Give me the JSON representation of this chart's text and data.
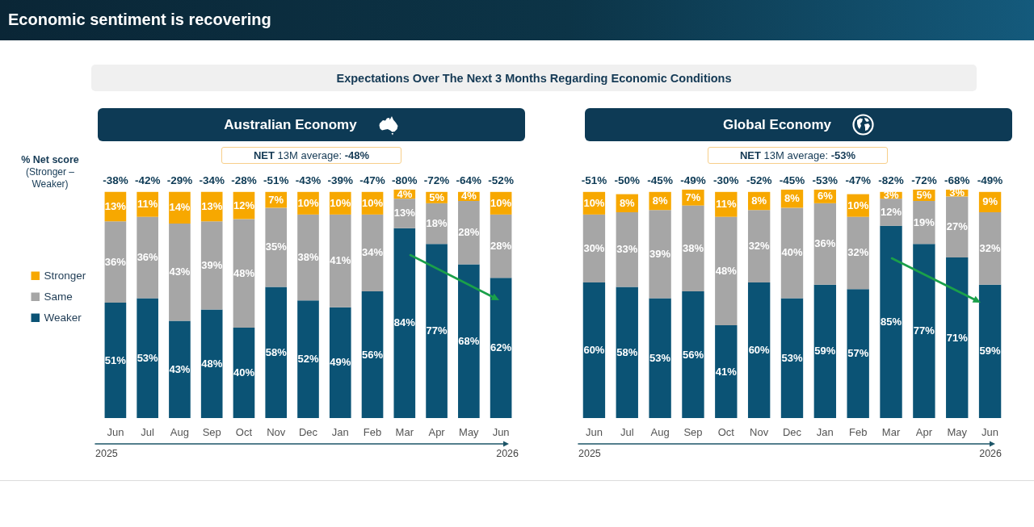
{
  "chart_data": [
    {
      "type": "other",
      "title": "Economic sentiment is recovering",
      "subtitle": "Expectations Over The Next 3 Months Regarding Economic Conditions"
    },
    {
      "type": "bar",
      "title": "Australian Economy",
      "subtitle": "NET 13M average: -48%",
      "ylabel": "% Net score (Stronger – Weaker)",
      "stacked": true,
      "legend": "left",
      "categories": [
        "Jun",
        "Jul",
        "Aug",
        "Sep",
        "Oct",
        "Nov",
        "Dec",
        "Jan",
        "Feb",
        "Mar",
        "Apr",
        "May",
        "Jun"
      ],
      "series": [
        {
          "name": "Weaker",
          "color": "#0b5375",
          "values": [
            51,
            53,
            43,
            48,
            40,
            58,
            52,
            49,
            56,
            84,
            77,
            68,
            62
          ],
          "value_labels": [
            "51%",
            "53%",
            "43%",
            "48%",
            "40%",
            "58%",
            "52%",
            "49%",
            "56%",
            "84%",
            "77%",
            "68%",
            "62%"
          ]
        },
        {
          "name": "Same",
          "color": "#a6a6a6",
          "values": [
            36,
            36,
            43,
            39,
            48,
            35,
            38,
            41,
            34,
            13,
            18,
            28,
            28
          ],
          "value_labels": [
            "36%",
            "36%",
            "43%",
            "39%",
            "48%",
            "35%",
            "38%",
            "41%",
            "34%",
            "13%",
            "18%",
            "28%",
            "28%"
          ]
        },
        {
          "name": "Stronger",
          "color": "#f7a800",
          "values": [
            13,
            11,
            14,
            13,
            12,
            7,
            10,
            10,
            10,
            4,
            5,
            4,
            10
          ],
          "value_labels": [
            "13%",
            "11%",
            "14%",
            "13%",
            "12%",
            "7%",
            "10%",
            "10%",
            "10%",
            "4%",
            "5%",
            "4%",
            "10%"
          ]
        }
      ],
      "annotations": [
        "-38%",
        "-42%",
        "-29%",
        "-34%",
        "-28%",
        "-51%",
        "-43%",
        "-39%",
        "-47%",
        "-80%",
        "-72%",
        "-64%",
        "-52%",
        "2025",
        "2026"
      ]
    },
    {
      "type": "bar",
      "title": "Global Economy",
      "subtitle": "NET 13M average: -53%",
      "stacked": true,
      "categories": [
        "Jun",
        "Jul",
        "Aug",
        "Sep",
        "Oct",
        "Nov",
        "Dec",
        "Jan",
        "Feb",
        "Mar",
        "Apr",
        "May",
        "Jun"
      ],
      "series": [
        {
          "color": "#0b5375",
          "values": [
            60,
            58,
            53,
            56,
            41,
            60,
            53,
            59,
            57,
            85,
            77,
            71,
            59
          ],
          "value_labels": [
            "60%",
            "58%",
            "53%",
            "56%",
            "41%",
            "60%",
            "53%",
            "59%",
            "57%",
            "85%",
            "77%",
            "71%",
            "59%"
          ]
        },
        {
          "color": "#a6a6a6",
          "values": [
            30,
            33,
            39,
            38,
            48,
            32,
            40,
            36,
            32,
            12,
            19,
            27,
            32
          ],
          "value_labels": [
            "30%",
            "33%",
            "39%",
            "38%",
            "48%",
            "32%",
            "40%",
            "36%",
            "32%",
            "12%",
            "19%",
            "27%",
            "32%"
          ]
        },
        {
          "color": "#f7a800",
          "values": [
            10,
            8,
            8,
            7,
            11,
            8,
            8,
            6,
            10,
            3,
            5,
            3,
            9
          ],
          "value_labels": [
            "10%",
            "8%",
            "8%",
            "7%",
            "11%",
            "8%",
            "8%",
            "6%",
            "10%",
            "3%",
            "5%",
            "3%",
            "9%"
          ]
        }
      ],
      "annotations": [
        "-51%",
        "-50%",
        "-45%",
        "-49%",
        "-30%",
        "-52%",
        "-45%",
        "-53%",
        "-47%",
        "-82%",
        "-72%",
        "-68%",
        "-49%",
        "2025",
        "2026"
      ]
    }
  ]
}
